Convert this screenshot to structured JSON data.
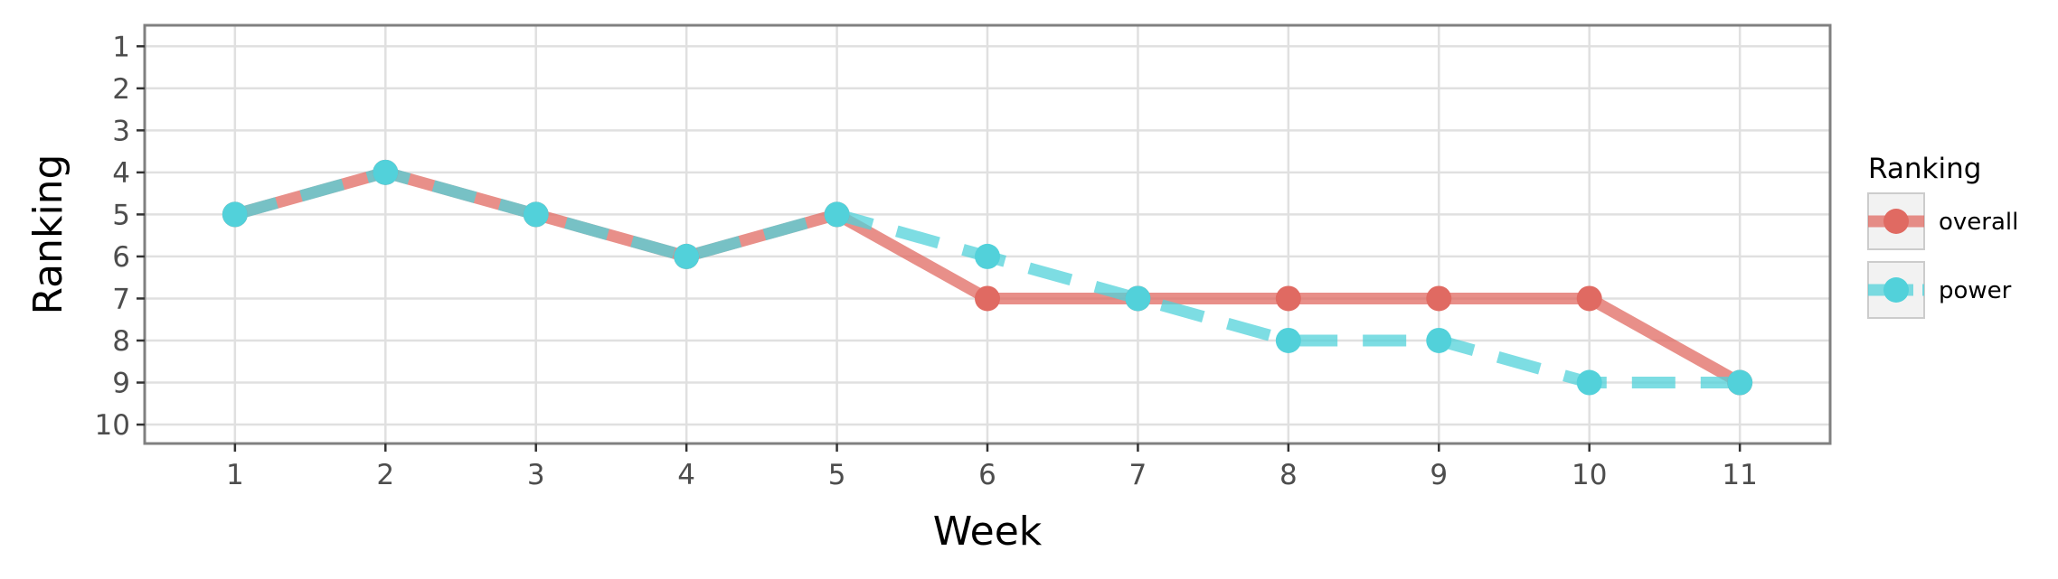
{
  "chart_data": {
    "type": "line",
    "xlabel": "Week",
    "ylabel": "Ranking",
    "x": [
      1,
      2,
      3,
      4,
      5,
      6,
      7,
      8,
      9,
      10,
      11
    ],
    "x_ticks": [
      "1",
      "2",
      "3",
      "4",
      "5",
      "6",
      "7",
      "8",
      "9",
      "10",
      "11"
    ],
    "y_ticks": [
      "1",
      "2",
      "3",
      "4",
      "5",
      "6",
      "7",
      "8",
      "9",
      "10"
    ],
    "y_reversed": true,
    "xlim": [
      0.4,
      11.6
    ],
    "ylim": [
      0.5,
      10.45
    ],
    "grid": true,
    "legend_title": "Ranking",
    "legend_position": "right",
    "series": [
      {
        "name": "overall",
        "values": [
          5,
          4,
          5,
          6,
          5,
          7,
          7,
          7,
          7,
          7,
          9
        ],
        "color": "#e06a62",
        "line_style": "solid"
      },
      {
        "name": "power",
        "values": [
          5,
          4,
          5,
          6,
          5,
          6,
          7,
          8,
          8,
          9,
          9
        ],
        "color": "#52d1da",
        "line_style": "dashed"
      }
    ]
  }
}
